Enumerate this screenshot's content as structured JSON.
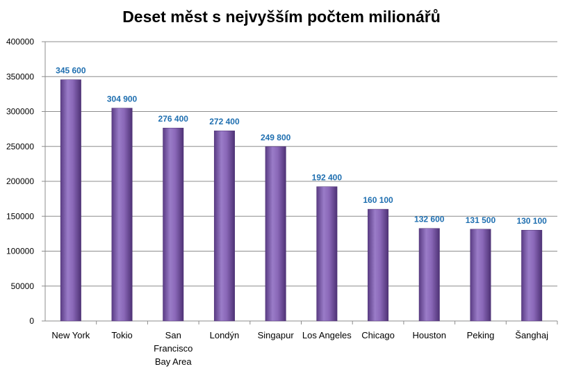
{
  "chart_data": {
    "type": "bar",
    "title": "Deset měst s nejvyšším počtem milionářů",
    "xlabel": "",
    "ylabel": "",
    "categories": [
      "New York",
      "Tokio",
      "San Francisco Bay Area",
      "Londýn",
      "Singapur",
      "Los Angeles",
      "Chicago",
      "Houston",
      "Peking",
      "Šanghaj"
    ],
    "category_lines": [
      [
        "New York"
      ],
      [
        "Tokio"
      ],
      [
        "San",
        "Francisco",
        "Bay Area"
      ],
      [
        "Londýn"
      ],
      [
        "Singapur"
      ],
      [
        "Los Angeles"
      ],
      [
        "Chicago"
      ],
      [
        "Houston"
      ],
      [
        "Peking"
      ],
      [
        "Šanghaj"
      ]
    ],
    "values": [
      345600,
      304900,
      276400,
      272400,
      249800,
      192400,
      160100,
      132600,
      131500,
      130100
    ],
    "data_labels": [
      "345 600",
      "304 900",
      "276 400",
      "272 400",
      "249 800",
      "192 400",
      "160 100",
      "132 600",
      "131 500",
      "130 100"
    ],
    "ylim": [
      0,
      400000
    ],
    "yticks": [
      0,
      50000,
      100000,
      150000,
      200000,
      250000,
      300000,
      350000,
      400000
    ],
    "ytick_labels": [
      "0",
      "50000",
      "100000",
      "150000",
      "200000",
      "250000",
      "300000",
      "350000",
      "400000"
    ],
    "grid": true,
    "bar_color": "#8a68b8",
    "bar_color_dark": "#5a3c84",
    "data_label_color": "#1f6fb0"
  }
}
